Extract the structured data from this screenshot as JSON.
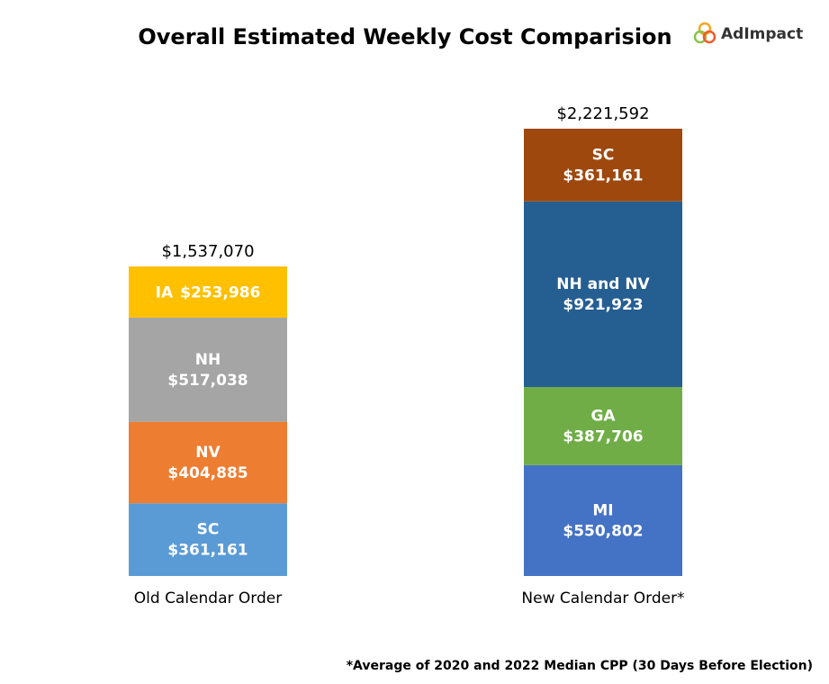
{
  "chart_data": {
    "type": "stacked-bar",
    "title": "Overall Estimated Weekly Cost Comparision",
    "logo": "AdImpact",
    "footnote": "*Average of 2020 and 2022 Median CPP (30 Days Before Election)",
    "categories": [
      "Old Calendar Order",
      "New Calendar Order*"
    ],
    "stacks": [
      {
        "total": 1537070,
        "total_label": "$1,537,070",
        "segments": [
          {
            "name": "SC",
            "value": 361161,
            "value_label": "$361,161",
            "color": "#5b9bd5"
          },
          {
            "name": "NV",
            "value": 404885,
            "value_label": "$404,885",
            "color": "#ed7d31"
          },
          {
            "name": "NH",
            "value": 517038,
            "value_label": "$517,038",
            "color": "#a5a5a5"
          },
          {
            "name": "IA",
            "value": 253986,
            "value_label": "$253,986",
            "color": "#ffc000"
          }
        ]
      },
      {
        "total": 2221592,
        "total_label": "$2,221,592",
        "segments": [
          {
            "name": "MI",
            "value": 550802,
            "value_label": "$550,802",
            "color": "#4472c4"
          },
          {
            "name": "GA",
            "value": 387706,
            "value_label": "$387,706",
            "color": "#70ad47"
          },
          {
            "name": "NH and NV",
            "value": 921923,
            "value_label": "$921,923",
            "color": "#255e91"
          },
          {
            "name": "SC",
            "value": 361161,
            "value_label": "$361,161",
            "color": "#9e480e"
          }
        ]
      }
    ]
  }
}
